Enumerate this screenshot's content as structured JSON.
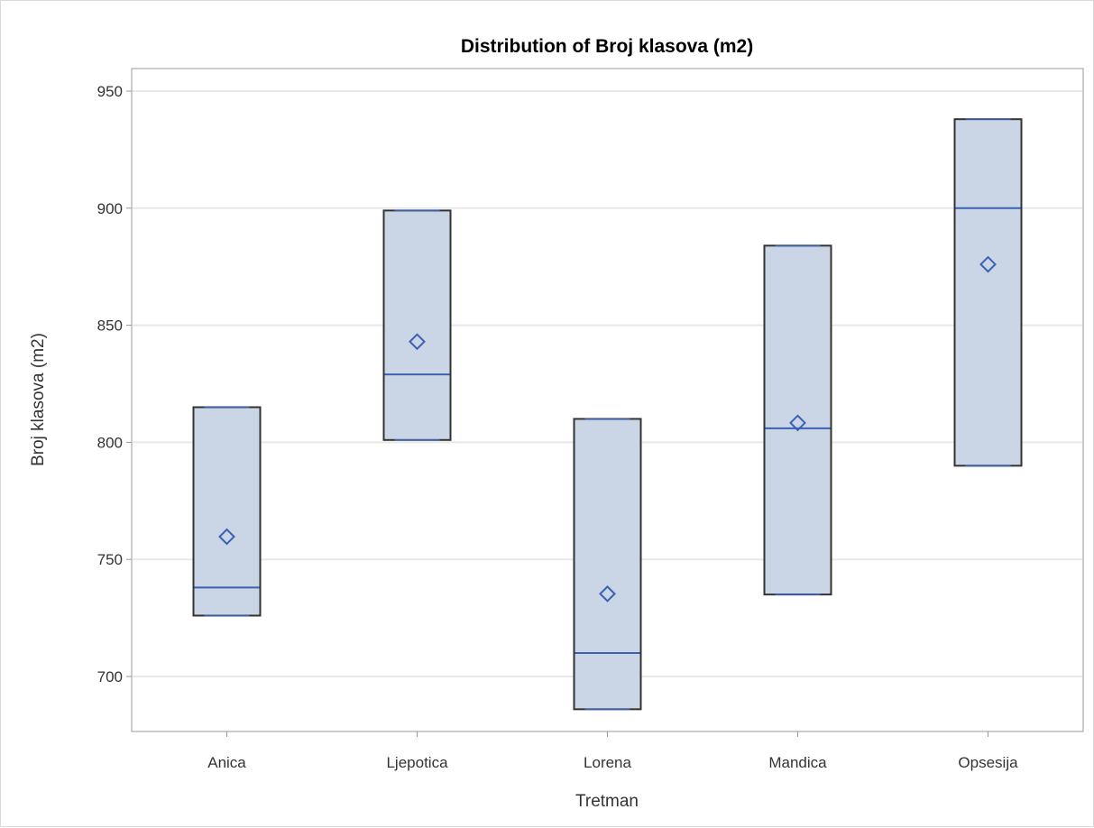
{
  "chart_data": {
    "type": "box",
    "title": "Distribution of Broj klasova (m2)",
    "xlabel": "Tretman",
    "ylabel": "Broj klasova (m2)",
    "ylim": [
      675,
      960
    ],
    "yticks": [
      700,
      750,
      800,
      850,
      900,
      950
    ],
    "grid": true,
    "categories": [
      "Anica",
      "Ljepotica",
      "Lorena",
      "Mandica",
      "Opsesija"
    ],
    "boxes": [
      {
        "category": "Anica",
        "min": 726,
        "q1": 726,
        "median": 738,
        "q3": 815,
        "max": 815,
        "mean": 759.7
      },
      {
        "category": "Ljepotica",
        "min": 801,
        "q1": 801,
        "median": 829,
        "q3": 899,
        "max": 899,
        "mean": 843
      },
      {
        "category": "Lorena",
        "min": 686,
        "q1": 686,
        "median": 710,
        "q3": 810,
        "max": 810,
        "mean": 735.3
      },
      {
        "category": "Mandica",
        "min": 735,
        "q1": 735,
        "median": 806,
        "q3": 884,
        "max": 884,
        "mean": 808.3
      },
      {
        "category": "Opsesija",
        "min": 790,
        "q1": 790,
        "median": 900,
        "q3": 938,
        "max": 938,
        "mean": 876
      }
    ],
    "colors": {
      "box_fill": "#cad5e5",
      "box_stroke": "#333333",
      "median": "#3a61b3",
      "mean_marker": "#3a61b3",
      "grid": "#e8e8e8",
      "axis": "#999999"
    }
  }
}
